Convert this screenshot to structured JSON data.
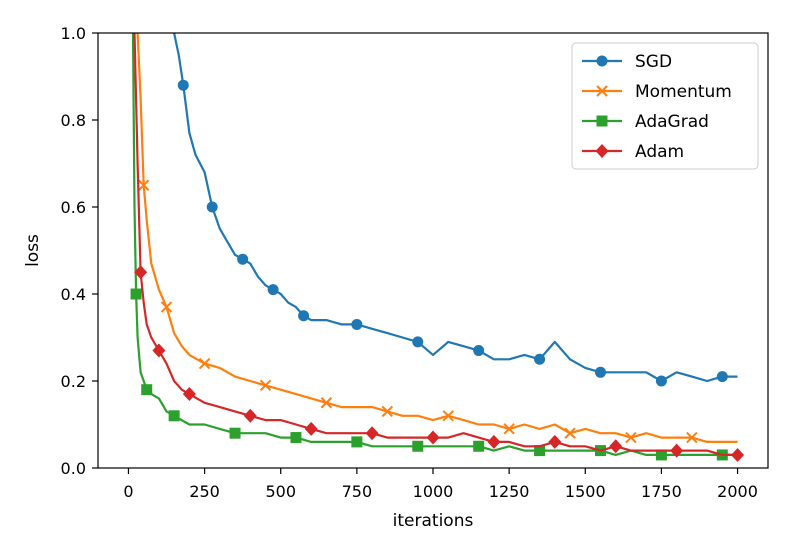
{
  "chart_data": {
    "type": "line",
    "xlabel": "iterations",
    "ylabel": "loss",
    "xlim": [
      -100,
      2100
    ],
    "ylim": [
      0.0,
      1.0
    ],
    "xticks": [
      0,
      250,
      500,
      750,
      1000,
      1250,
      1500,
      1750,
      2000
    ],
    "xtick_labels": [
      "0",
      "250",
      "500",
      "750",
      "1000",
      "1250",
      "1500",
      "1750",
      "2000"
    ],
    "yticks": [
      0.0,
      0.2,
      0.4,
      0.6,
      0.8,
      1.0
    ],
    "ytick_labels": [
      "0.0",
      "0.2",
      "0.4",
      "0.6",
      "0.8",
      "1.0"
    ],
    "grid": false,
    "legend_position": "top-right",
    "series": [
      {
        "name": "SGD",
        "color": "#1f77b4",
        "marker": "circle",
        "x": [
          150,
          165,
          180,
          200,
          220,
          250,
          275,
          300,
          325,
          350,
          375,
          400,
          425,
          450,
          475,
          500,
          525,
          550,
          575,
          600,
          650,
          700,
          750,
          800,
          850,
          900,
          950,
          1000,
          1050,
          1100,
          1150,
          1200,
          1250,
          1300,
          1350,
          1400,
          1450,
          1500,
          1550,
          1600,
          1650,
          1700,
          1750,
          1800,
          1850,
          1900,
          1950,
          2000
        ],
        "y": [
          1.0,
          0.95,
          0.88,
          0.77,
          0.72,
          0.68,
          0.6,
          0.55,
          0.52,
          0.49,
          0.48,
          0.47,
          0.44,
          0.42,
          0.41,
          0.4,
          0.38,
          0.37,
          0.35,
          0.34,
          0.34,
          0.33,
          0.33,
          0.32,
          0.31,
          0.3,
          0.29,
          0.26,
          0.29,
          0.28,
          0.27,
          0.25,
          0.25,
          0.26,
          0.25,
          0.29,
          0.25,
          0.23,
          0.22,
          0.22,
          0.22,
          0.22,
          0.2,
          0.22,
          0.21,
          0.2,
          0.21,
          0.21
        ]
      },
      {
        "name": "Momentum",
        "color": "#ff7f0e",
        "marker": "x",
        "x": [
          30,
          40,
          50,
          60,
          75,
          100,
          125,
          150,
          175,
          200,
          250,
          300,
          350,
          400,
          450,
          500,
          550,
          600,
          650,
          700,
          750,
          800,
          850,
          900,
          950,
          1000,
          1050,
          1100,
          1150,
          1200,
          1250,
          1300,
          1350,
          1400,
          1450,
          1500,
          1550,
          1600,
          1650,
          1700,
          1750,
          1800,
          1850,
          1900,
          1950,
          2000
        ],
        "y": [
          1.0,
          0.85,
          0.65,
          0.57,
          0.47,
          0.41,
          0.37,
          0.31,
          0.28,
          0.26,
          0.24,
          0.23,
          0.21,
          0.2,
          0.19,
          0.18,
          0.17,
          0.16,
          0.15,
          0.14,
          0.14,
          0.14,
          0.13,
          0.12,
          0.12,
          0.11,
          0.12,
          0.11,
          0.1,
          0.1,
          0.09,
          0.1,
          0.09,
          0.1,
          0.08,
          0.09,
          0.08,
          0.08,
          0.07,
          0.08,
          0.07,
          0.07,
          0.07,
          0.06,
          0.06,
          0.06
        ]
      },
      {
        "name": "AdaGrad",
        "color": "#2ca02c",
        "marker": "square",
        "x": [
          15,
          20,
          25,
          30,
          40,
          50,
          60,
          75,
          100,
          125,
          150,
          200,
          250,
          300,
          350,
          400,
          450,
          500,
          550,
          600,
          650,
          700,
          750,
          800,
          850,
          900,
          950,
          1000,
          1050,
          1100,
          1150,
          1200,
          1250,
          1300,
          1350,
          1400,
          1450,
          1500,
          1550,
          1600,
          1650,
          1700,
          1750,
          1800,
          1850,
          1900,
          1950,
          2000
        ],
        "y": [
          1.0,
          0.6,
          0.4,
          0.3,
          0.22,
          0.2,
          0.18,
          0.17,
          0.16,
          0.13,
          0.12,
          0.1,
          0.1,
          0.09,
          0.08,
          0.08,
          0.08,
          0.07,
          0.07,
          0.06,
          0.06,
          0.06,
          0.06,
          0.05,
          0.05,
          0.05,
          0.05,
          0.05,
          0.05,
          0.05,
          0.05,
          0.04,
          0.05,
          0.04,
          0.04,
          0.04,
          0.04,
          0.04,
          0.04,
          0.03,
          0.04,
          0.03,
          0.03,
          0.03,
          0.03,
          0.03,
          0.03,
          0.03
        ]
      },
      {
        "name": "Adam",
        "color": "#d62728",
        "marker": "diamond",
        "x": [
          20,
          30,
          40,
          50,
          60,
          75,
          100,
          125,
          150,
          175,
          200,
          250,
          300,
          350,
          400,
          450,
          500,
          550,
          600,
          650,
          700,
          750,
          800,
          850,
          900,
          950,
          1000,
          1050,
          1100,
          1150,
          1200,
          1250,
          1300,
          1350,
          1400,
          1450,
          1500,
          1550,
          1600,
          1650,
          1700,
          1750,
          1800,
          1850,
          1900,
          1950,
          2000
        ],
        "y": [
          1.0,
          0.7,
          0.45,
          0.38,
          0.33,
          0.3,
          0.27,
          0.24,
          0.2,
          0.18,
          0.17,
          0.15,
          0.14,
          0.13,
          0.12,
          0.11,
          0.11,
          0.1,
          0.09,
          0.08,
          0.08,
          0.08,
          0.08,
          0.07,
          0.07,
          0.07,
          0.07,
          0.07,
          0.08,
          0.07,
          0.06,
          0.06,
          0.05,
          0.05,
          0.06,
          0.05,
          0.05,
          0.04,
          0.05,
          0.04,
          0.04,
          0.04,
          0.04,
          0.04,
          0.04,
          0.03,
          0.03
        ]
      }
    ]
  }
}
